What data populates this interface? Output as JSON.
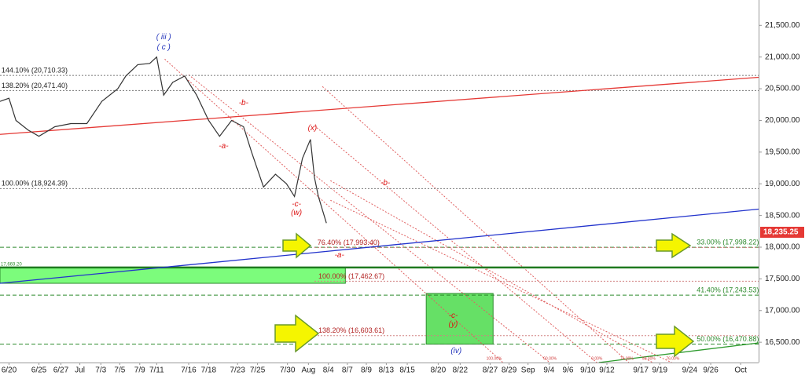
{
  "chart_data": {
    "type": "line",
    "color": "#333333",
    "x": [
      0,
      0.9,
      1.6,
      2.8,
      3.9,
      5.5,
      7.1,
      8.7,
      10.2,
      11.8,
      12.6,
      13.8,
      15,
      15.7,
      16.4,
      17.3,
      18.5,
      19.7,
      20.9,
      22,
      23.2,
      24.4,
      25.2,
      26.4,
      27.6,
      28.7,
      29.5,
      30.3,
      31.1,
      31.5,
      31.9,
      32.7
    ],
    "values": [
      20300,
      20350,
      20000,
      19850,
      19750,
      19900,
      19950,
      19950,
      20300,
      20500,
      20700,
      20880,
      20900,
      21000,
      20400,
      20600,
      20700,
      20400,
      20000,
      19750,
      20000,
      19900,
      19500,
      18950,
      19150,
      19000,
      18800,
      19400,
      19700,
      19100,
      18800,
      18380
    ],
    "xlim": [
      0,
      76
    ],
    "ylim": [
      16180,
      21900
    ],
    "xticks": [
      {
        "value": 0.9,
        "label": "6/20"
      },
      {
        "value": 3.9,
        "label": "6/25"
      },
      {
        "value": 6.1,
        "label": "6/27"
      },
      {
        "value": 8,
        "label": "Jul"
      },
      {
        "value": 10.1,
        "label": "7/3"
      },
      {
        "value": 12,
        "label": "7/5"
      },
      {
        "value": 14,
        "label": "7/9"
      },
      {
        "value": 15.7,
        "label": "7/11"
      },
      {
        "value": 18.9,
        "label": "7/16"
      },
      {
        "value": 20.9,
        "label": "7/18"
      },
      {
        "value": 23.8,
        "label": "7/23"
      },
      {
        "value": 25.8,
        "label": "7/25"
      },
      {
        "value": 28.8,
        "label": "7/30"
      },
      {
        "value": 30.9,
        "label": "Aug"
      },
      {
        "value": 32.9,
        "label": "8/4"
      },
      {
        "value": 34.8,
        "label": "8/7"
      },
      {
        "value": 36.7,
        "label": "8/9"
      },
      {
        "value": 38.7,
        "label": "8/13"
      },
      {
        "value": 40.8,
        "label": "8/15"
      },
      {
        "value": 43.9,
        "label": "8/20"
      },
      {
        "value": 46.1,
        "label": "8/22"
      },
      {
        "value": 49.1,
        "label": "8/27"
      },
      {
        "value": 51,
        "label": "8/29"
      },
      {
        "value": 52.9,
        "label": "Sep"
      },
      {
        "value": 55,
        "label": "9/4"
      },
      {
        "value": 56.9,
        "label": "9/6"
      },
      {
        "value": 58.9,
        "label": "9/10"
      },
      {
        "value": 60.8,
        "label": "9/12"
      },
      {
        "value": 64.2,
        "label": "9/17"
      },
      {
        "value": 66.1,
        "label": "9/19"
      },
      {
        "value": 69.1,
        "label": "9/24"
      },
      {
        "value": 71.2,
        "label": "9/26"
      },
      {
        "value": 74.2,
        "label": "Oct"
      }
    ],
    "yticks": [
      {
        "value": 21500,
        "label": "21,500.00"
      },
      {
        "value": 21000,
        "label": "21,000.00"
      },
      {
        "value": 20500,
        "label": "20,500.00"
      },
      {
        "value": 20000,
        "label": "20,000.00"
      },
      {
        "value": 19500,
        "label": "19,500.00"
      },
      {
        "value": 19000,
        "label": "19,000.00"
      },
      {
        "value": 18500,
        "label": "18,500.00"
      },
      {
        "value": 18000,
        "label": "18,000.00"
      },
      {
        "value": 17500,
        "label": "17,500.00"
      },
      {
        "value": 17000,
        "label": "17,000.00"
      },
      {
        "value": 16500,
        "label": "16,500.00"
      }
    ],
    "last_price": 18235.25,
    "last_price_label": "18,235.25",
    "last_price_color": "#e53935",
    "levels": [
      {
        "value": 20710.33,
        "label": "144.10% (20,710.33)",
        "color": "#222222",
        "line_color": "#777777",
        "style": "dotted",
        "x0": 0,
        "label_x": 0.15
      },
      {
        "value": 20471.4,
        "label": "138.20% (20,471.40)",
        "color": "#222222",
        "line_color": "#777777",
        "style": "dotted",
        "x0": 0,
        "label_x": 0.15
      },
      {
        "value": 18924.39,
        "label": "100.00% (18,924.39)",
        "color": "#222222",
        "line_color": "#777777",
        "style": "dotted",
        "x0": 0,
        "label_x": 0.15
      },
      {
        "value": 17998.22,
        "label": "33.00% (17,998.22)",
        "color": "#2e8b2e",
        "line_color": "#2e8b2e",
        "style": "dashed",
        "x0": 0,
        "label_x": 69.8
      },
      {
        "value": 17993.4,
        "label": "76.40% (17,993.40)",
        "color": "#b22222",
        "line_color": "#d08080",
        "style": "dotted",
        "x0": 31.5,
        "label_x": 31.8
      },
      {
        "value": 17462.67,
        "label": "100.00% (17,462.67)",
        "color": "#b22222",
        "line_color": "#d08080",
        "style": "dotted",
        "x0": 31.5,
        "label_x": 31.9
      },
      {
        "value": 17243.53,
        "label": "41.40% (17,243.53)",
        "color": "#2e8b2e",
        "line_color": "#2e8b2e",
        "style": "dashed",
        "x0": 0,
        "label_x": 69.8
      },
      {
        "value": 16603.61,
        "label": "138.20% (16,603.61)",
        "color": "#b22222",
        "line_color": "#d08080",
        "style": "dotted",
        "x0": 31.5,
        "label_x": 31.9
      },
      {
        "value": 16470.88,
        "label": "50.00% (16,470.88)",
        "color": "#2e8b2e",
        "line_color": "#2e8b2e",
        "style": "dashed",
        "x0": 0,
        "label_x": 69.8
      }
    ],
    "support_line": {
      "value": 17680,
      "color": "#1f7a1f"
    },
    "boxes": [
      {
        "x": [
          0,
          34.6
        ],
        "y": [
          17430,
          17680
        ],
        "color": "#7cfc7c",
        "label": "17,669.20"
      },
      {
        "x": [
          42.7,
          49.4
        ],
        "y": [
          16470,
          17270
        ],
        "color": "#66e066"
      }
    ],
    "trend_lines": [
      {
        "color": "#e53935",
        "points": [
          [
            0,
            19780
          ],
          [
            76,
            20680
          ]
        ]
      },
      {
        "color": "#2233cc",
        "points": [
          [
            0,
            17430
          ],
          [
            76,
            18600
          ]
        ]
      },
      {
        "color": "#2e9b2e",
        "points": [
          [
            60,
            16180
          ],
          [
            76,
            16490
          ]
        ]
      }
    ],
    "fan_lines": [
      {
        "color": "#e06060",
        "points": [
          [
            16.5,
            20968
          ],
          [
            50.4,
            16178
          ]
        ]
      },
      {
        "color": "#e06060",
        "points": [
          [
            18.9,
            20720
          ],
          [
            55.1,
            16178
          ]
        ]
      },
      {
        "color": "#e06060",
        "points": [
          [
            31.5,
            19916
          ],
          [
            59.8,
            16178
          ]
        ]
      },
      {
        "color": "#e06060",
        "points": [
          [
            32.3,
            20535
          ],
          [
            63,
            16178
          ]
        ]
      },
      {
        "color": "#e06060",
        "points": [
          [
            33.1,
            19050
          ],
          [
            65.4,
            16178
          ]
        ]
      },
      {
        "color": "#e06060",
        "points": [
          [
            33.1,
            18740
          ],
          [
            67.3,
            16178
          ]
        ]
      }
    ],
    "annotations": [
      {
        "text": "( iii )",
        "x": 16.4,
        "y": 21314,
        "color": "#2233bb"
      },
      {
        "text": "( c )",
        "x": 16.4,
        "y": 21153,
        "color": "#2233bb"
      },
      {
        "text": "-b-",
        "x": 24.4,
        "y": 20275,
        "color": "#dd1111"
      },
      {
        "text": "-a-",
        "x": 22.4,
        "y": 19594,
        "color": "#dd1111"
      },
      {
        "text": "(x)",
        "x": 31.3,
        "y": 19879,
        "color": "#dd1111"
      },
      {
        "text": "-c-",
        "x": 29.7,
        "y": 18678,
        "color": "#dd1111"
      },
      {
        "text": "(w)",
        "x": 29.7,
        "y": 18542,
        "color": "#dd1111"
      },
      {
        "text": "-b-",
        "x": 38.6,
        "y": 19012,
        "color": "#dd1111"
      },
      {
        "text": "-a-",
        "x": 34.0,
        "y": 17874,
        "color": "#dd1111"
      },
      {
        "text": "-c-",
        "x": 45.4,
        "y": 16921,
        "color": "#dd1111"
      },
      {
        "text": "(y)",
        "x": 45.4,
        "y": 16785,
        "color": "#dd1111"
      },
      {
        "text": "(iv)",
        "x": 45.7,
        "y": 16364,
        "color": "#2233bb"
      }
    ],
    "small_labels": [
      {
        "text": "100.00%",
        "x": 49.5,
        "y": 16240
      },
      {
        "text": "60.00%",
        "x": 55.1,
        "y": 16240
      },
      {
        "text": "0.00%",
        "x": 59.8,
        "y": 16240
      },
      {
        "text": "76.00%",
        "x": 62.8,
        "y": 16240
      },
      {
        "text": "50.00%",
        "x": 65.0,
        "y": 16240
      },
      {
        "text": "76.00%",
        "x": 67.4,
        "y": 16240
      }
    ]
  }
}
